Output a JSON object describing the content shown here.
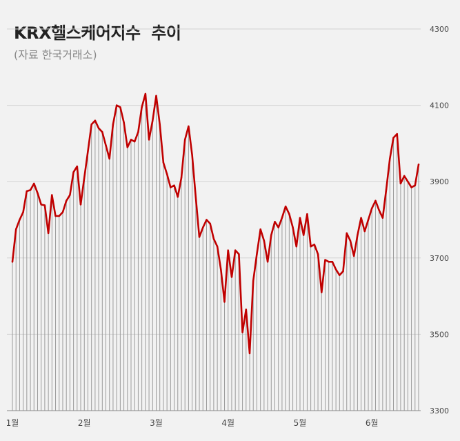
{
  "chart_data": {
    "type": "line",
    "title": "KRX헬스케어지수  추이",
    "subtitle": "(자료 한국거래소)",
    "xlabel": "",
    "ylabel": "",
    "ylim": [
      3300,
      4300
    ],
    "yticks": [
      3300,
      3500,
      3700,
      3900,
      4100,
      4300
    ],
    "ytick_labels": [
      "3300",
      "3500",
      "3700",
      "3900",
      "4100",
      "4300"
    ],
    "y_axis_side": "right",
    "grid": true,
    "xtick_labels": [
      "1월",
      "2월",
      "3월",
      "4월",
      "5월",
      "6월"
    ],
    "xtick_positions": [
      0,
      20,
      40,
      60,
      80,
      100
    ],
    "line_color": "#c00000",
    "drop_line_color": "#9a9a9a",
    "series": [
      {
        "values": [
          3690,
          3775,
          3800,
          3820,
          3875,
          3878,
          3895,
          3870,
          3840,
          3838,
          3765,
          3865,
          3810,
          3810,
          3820,
          3850,
          3865,
          3925,
          3940,
          3840,
          3910,
          3980,
          4050,
          4060,
          4040,
          4030,
          3995,
          3960,
          4050,
          4100,
          4095,
          4055,
          3990,
          4010,
          4005,
          4030,
          4095,
          4130,
          4010,
          4060,
          4125,
          4050,
          3950,
          3920,
          3885,
          3890,
          3860,
          3910,
          4010,
          4045,
          3970,
          3860,
          3755,
          3780,
          3800,
          3790,
          3750,
          3730,
          3670,
          3585,
          3720,
          3650,
          3720,
          3710,
          3505,
          3565,
          3450,
          3640,
          3710,
          3775,
          3745,
          3690,
          3760,
          3795,
          3780,
          3805,
          3835,
          3815,
          3780,
          3730,
          3805,
          3760,
          3815,
          3730,
          3735,
          3710,
          3610,
          3695,
          3690,
          3690,
          3670,
          3655,
          3665,
          3765,
          3745,
          3705,
          3760,
          3805,
          3770,
          3800,
          3830,
          3850,
          3825,
          3805,
          3880,
          3960,
          4015,
          4025,
          3895,
          3915,
          3900,
          3885,
          3890,
          3945
        ]
      }
    ]
  }
}
